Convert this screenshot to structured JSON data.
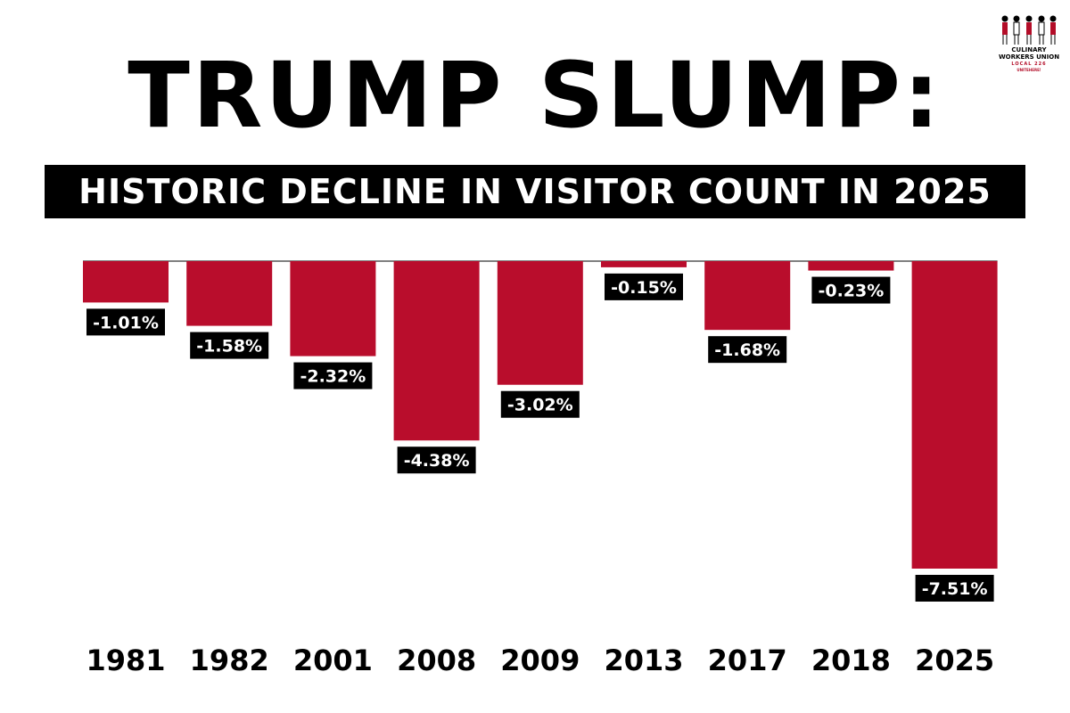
{
  "title": "TRUMP SLUMP:",
  "subtitle": "HISTORIC DECLINE IN VISITOR COUNT IN 2025",
  "logo": {
    "line1": "CULINARY",
    "line2": "WORKERS UNION",
    "line3": "LOCAL 226",
    "line4": "UNITEHERE!"
  },
  "colors": {
    "bar": "#b90d2c",
    "label_bg": "#000000",
    "label_text": "#ffffff",
    "text": "#000000"
  },
  "chart_data": {
    "type": "bar",
    "categories": [
      "1981",
      "1982",
      "2001",
      "2008",
      "2009",
      "2013",
      "2017",
      "2018",
      "2025"
    ],
    "values": [
      -1.01,
      -1.58,
      -2.32,
      -4.38,
      -3.02,
      -0.15,
      -1.68,
      -0.23,
      -7.51
    ],
    "labels": [
      "-1.01%",
      "-1.58%",
      "-2.32%",
      "-4.38%",
      "-3.02%",
      "-0.15%",
      "-1.68%",
      "-0.23%",
      "-7.51%"
    ],
    "title": "TRUMP SLUMP:",
    "subtitle": "HISTORIC DECLINE IN VISITOR COUNT IN 2025",
    "xlabel": "",
    "ylabel": "",
    "ylim": [
      -7.51,
      0
    ],
    "grid": false,
    "legend": "none"
  }
}
